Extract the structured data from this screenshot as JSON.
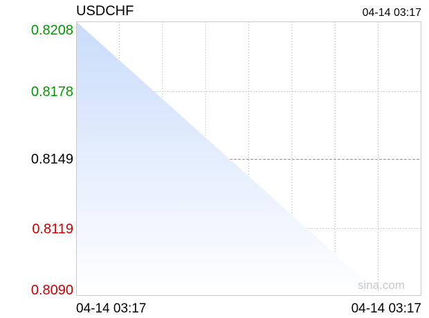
{
  "header": {
    "symbol": "USDCHF",
    "timestamp": "04-14 03:17"
  },
  "watermark": "sina.com",
  "colors": {
    "up": "#009900",
    "down": "#cc0000",
    "neutral": "#000000",
    "area_fill_top": "#c9dcfa",
    "area_fill_bottom": "#ffffff",
    "grid": "#cccccc"
  },
  "chart_data": {
    "type": "area",
    "title": "USDCHF",
    "x": [
      "04-14 03:17",
      "04-14 03:17"
    ],
    "series": [
      {
        "values": [
          0.8208,
          0.809
        ]
      }
    ],
    "ylim": [
      0.809,
      0.8208
    ],
    "y_ticks": [
      {
        "label": "0.8208",
        "value": 0.8208,
        "color": "up"
      },
      {
        "label": "0.8178",
        "value": 0.8178,
        "color": "up"
      },
      {
        "label": "0.8149",
        "value": 0.8149,
        "color": "neutral"
      },
      {
        "label": "0.8119",
        "value": 0.8119,
        "color": "down"
      },
      {
        "label": "0.8090",
        "value": 0.809,
        "color": "down"
      }
    ],
    "x_tick_labels": [
      "04-14 03:17",
      "04-14 03:17"
    ],
    "grid": true
  }
}
